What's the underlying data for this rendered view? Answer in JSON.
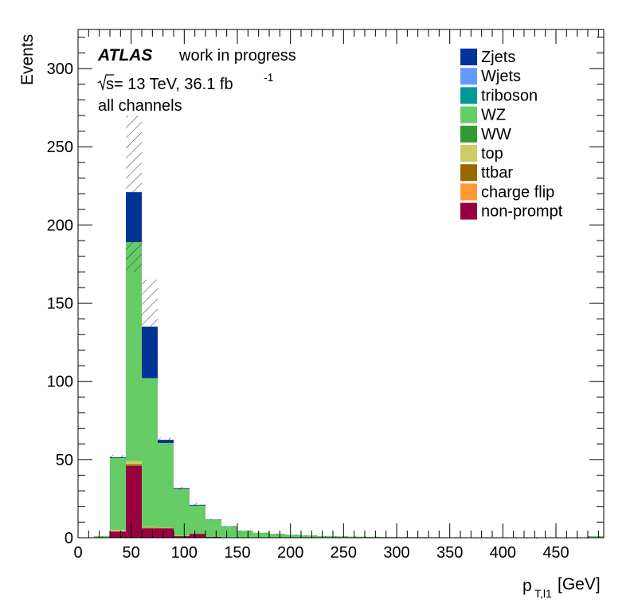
{
  "chart_data": {
    "type": "bar",
    "stacked": true,
    "xlabel_main": "p",
    "xlabel_sub": "T,l1",
    "xlabel_unit": "[GeV]",
    "ylabel": "Events",
    "xlim": [
      0,
      495
    ],
    "ylim": [
      0,
      325
    ],
    "x_ticks": [
      0,
      50,
      100,
      150,
      200,
      250,
      300,
      350,
      400,
      450
    ],
    "y_ticks": [
      0,
      50,
      100,
      150,
      200,
      250,
      300
    ],
    "bin_edges": [
      15,
      30,
      45,
      60,
      75,
      90,
      105,
      120,
      135,
      150,
      165,
      180,
      195,
      210,
      225,
      240,
      255,
      270,
      285,
      300,
      315,
      330,
      345,
      360,
      375,
      390,
      405,
      420,
      435,
      450,
      465,
      480,
      495
    ],
    "series": [
      {
        "name": "non-prompt",
        "color": "#99003f",
        "values": [
          0,
          4,
          46,
          6,
          6,
          1,
          2.5,
          0.5,
          0.3,
          0.2,
          0.1,
          0.1,
          0.1,
          0.1,
          0,
          0,
          0,
          0,
          0,
          0,
          0,
          0,
          0,
          0,
          0,
          0,
          0,
          0,
          0,
          0,
          0,
          0
        ]
      },
      {
        "name": "charge flip",
        "color": "#ff9933",
        "values": [
          0,
          0,
          0,
          0,
          0,
          0,
          0,
          0,
          0,
          0,
          0,
          0,
          0,
          0,
          0,
          0,
          0,
          0,
          0,
          0,
          0,
          0,
          0,
          0,
          0,
          0,
          0,
          0,
          0,
          0,
          0,
          0
        ]
      },
      {
        "name": "ttbar",
        "color": "#996600",
        "values": [
          0,
          0,
          1,
          0.5,
          0.3,
          0,
          0,
          0,
          0,
          0,
          0,
          0,
          0,
          0,
          0,
          0,
          0,
          0,
          0,
          0,
          0,
          0,
          0,
          0,
          0,
          0,
          0,
          0,
          0,
          0,
          0,
          0
        ]
      },
      {
        "name": "top",
        "color": "#cccc66",
        "values": [
          0,
          1,
          2,
          0.5,
          0.3,
          0.2,
          0,
          0,
          0,
          0,
          0,
          0,
          0,
          0,
          0,
          0,
          0,
          0,
          0,
          0,
          0,
          0,
          0,
          0,
          0,
          0,
          0,
          0,
          0,
          0,
          0,
          0
        ]
      },
      {
        "name": "WW",
        "color": "#339933",
        "values": [
          0,
          0,
          0,
          0,
          0,
          0,
          0,
          0,
          0,
          0,
          0,
          0,
          0,
          0,
          0,
          0,
          0,
          0,
          0,
          0,
          0,
          0,
          0,
          0,
          0,
          0,
          0,
          0,
          0,
          0,
          0,
          0
        ]
      },
      {
        "name": "WZ",
        "color": "#66cc66",
        "values": [
          1,
          46,
          140,
          95,
          54,
          30,
          18,
          11,
          7,
          4.3,
          3.1,
          2.4,
          1.8,
          1.4,
          1.1,
          0.9,
          0.7,
          0.6,
          0.5,
          0.4,
          0.35,
          0.3,
          0.25,
          0.2,
          0.18,
          0.15,
          0.12,
          0.1,
          0.08,
          0.07,
          0.06,
          1
        ]
      },
      {
        "name": "triboson",
        "color": "#009999",
        "values": [
          0,
          0,
          0,
          0,
          0,
          0,
          0,
          0,
          0,
          0,
          0,
          0,
          0,
          0,
          0,
          0,
          0,
          0,
          0,
          0,
          0,
          0,
          0,
          0,
          0,
          0,
          0,
          0,
          0,
          0,
          0,
          0
        ]
      },
      {
        "name": "Wjets",
        "color": "#6699ff",
        "values": [
          0,
          0,
          0,
          0,
          0,
          0,
          0,
          0,
          0,
          0,
          0,
          0,
          0,
          0,
          0,
          0,
          0,
          0,
          0,
          0,
          0,
          0,
          0,
          0,
          0,
          0,
          0,
          0,
          0,
          0,
          0,
          0
        ]
      },
      {
        "name": "Zjets",
        "color": "#003399",
        "values": [
          0,
          0.5,
          32,
          33,
          2,
          0.5,
          0.5,
          0.2,
          0.1,
          0,
          0,
          0,
          0,
          0,
          0,
          0,
          0,
          0,
          0,
          0,
          0,
          0,
          0,
          0,
          0,
          0,
          0,
          0,
          0,
          0,
          0,
          0
        ]
      }
    ],
    "uncertainty_band": {
      "description": "hatched",
      "low": [
        1,
        51,
        170,
        108,
        61,
        30.5,
        20.5,
        11.5,
        7.2,
        4.3,
        3.1,
        2.4,
        1.8,
        1.4,
        1.1,
        0.9,
        0.7,
        0.6,
        0.5,
        0.4,
        0.35,
        0.3,
        0.25,
        0.2,
        0.18,
        0.15,
        0.12,
        0.1,
        0.08,
        0.07,
        0.06,
        0.9
      ],
      "high": [
        1.1,
        53,
        270,
        165,
        64,
        32.5,
        22.5,
        12.3,
        7.6,
        4.7,
        3.3,
        2.6,
        1.9,
        1.5,
        1.2,
        1.0,
        0.8,
        0.7,
        0.55,
        0.45,
        0.4,
        0.35,
        0.28,
        0.22,
        0.2,
        0.17,
        0.14,
        0.12,
        0.1,
        0.09,
        0.08,
        1.1
      ]
    },
    "legend_order": [
      "Zjets",
      "Wjets",
      "triboson",
      "WZ",
      "WW",
      "top",
      "ttbar",
      "charge flip",
      "non-prompt"
    ],
    "legend_placement": "top-right",
    "annotations": {
      "atlas": "ATLAS",
      "label": "work in progress",
      "sqrt_s": "s",
      "energy_lumi": " = 13 TeV, 36.1 fb",
      "lumi_exp": "-1",
      "channels": "all channels"
    }
  }
}
